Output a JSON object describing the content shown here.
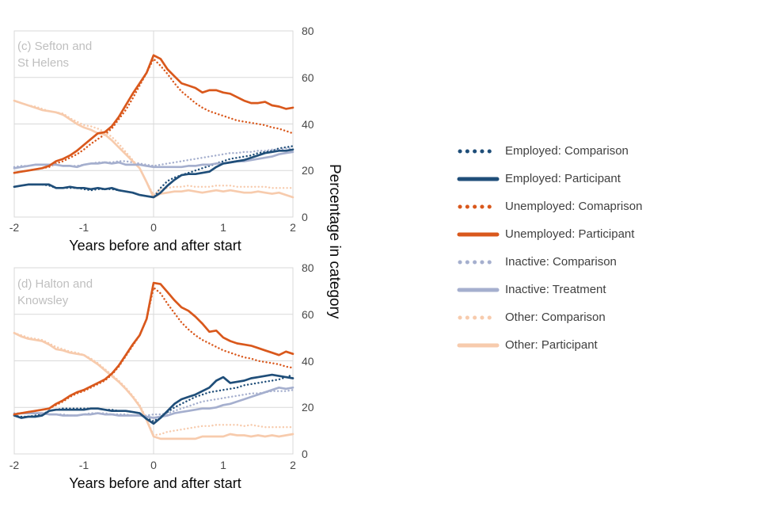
{
  "axis": {
    "x_title": "Years before and after start",
    "y_title": "Percentage in category",
    "x_ticks": [
      "-2",
      "-1",
      "0",
      "1",
      "2"
    ],
    "y_ticks": [
      "80",
      "60",
      "40",
      "20",
      "0"
    ]
  },
  "colors": {
    "navy": "#1F4E79",
    "orange": "#D9581C",
    "periwinkle": "#A5AFCE",
    "peach": "#F7CBAD",
    "grid": "#D9D9D9",
    "tick_text": "#484848",
    "panel_label_text": "#BFBFBF",
    "legend_text": "#404040"
  },
  "legend": {
    "items": [
      {
        "label": "Employed: Comparison",
        "color": "#1F4E79",
        "style": "dotted"
      },
      {
        "label": "Employed: Participant",
        "color": "#1F4E79",
        "style": "solid"
      },
      {
        "label": "Unemployed: Comaprison",
        "color": "#D9581C",
        "style": "dotted"
      },
      {
        "label": "Unemployed: Participant",
        "color": "#D9581C",
        "style": "solid"
      },
      {
        "label": "Inactive: Comparison",
        "color": "#A5AFCE",
        "style": "dotted"
      },
      {
        "label": "Inactive: Treatment",
        "color": "#A5AFCE",
        "style": "solid"
      },
      {
        "label": "Other: Comparison",
        "color": "#F7CBAD",
        "style": "dotted"
      },
      {
        "label": "Other: Participant",
        "color": "#F7CBAD",
        "style": "solid"
      }
    ]
  },
  "chart_data": [
    {
      "type": "line",
      "title": "(c) Sefton and St Helens",
      "panel_label_lines": [
        "(c) Sefton and",
        "St Helens"
      ],
      "xlabel": "Years before and after start",
      "ylabel": "Percentage in category",
      "xlim": [
        -2,
        2
      ],
      "ylim": [
        0,
        80
      ],
      "y_gridlines": [
        0,
        20,
        40,
        60,
        80
      ],
      "x_gridlines": [
        0
      ],
      "legend_position": "right",
      "x_start": -2,
      "x_step": 0.1,
      "series": [
        {
          "id": "employed-comparison",
          "name": "Employed: Comparison",
          "color": "#1F4E79",
          "line_style": "dotted",
          "values": [
            13,
            13.5,
            14,
            14,
            14,
            13.5,
            12.5,
            12.5,
            12.5,
            12.5,
            12,
            11.5,
            12,
            12,
            12,
            11.5,
            11,
            10.5,
            9.5,
            9,
            8.5,
            12.5,
            15.5,
            17,
            18,
            19,
            20,
            21,
            22,
            23,
            24,
            25,
            25.5,
            26,
            26.5,
            27.5,
            28,
            28.5,
            29.5,
            30,
            30.5
          ]
        },
        {
          "id": "employed-participant",
          "name": "Employed: Participant",
          "color": "#1F4E79",
          "line_style": "solid",
          "values": [
            13,
            13.5,
            14,
            14,
            14,
            14,
            12.5,
            12.5,
            13,
            12.5,
            12.5,
            12,
            12.5,
            12,
            12.5,
            11.5,
            11,
            10.5,
            9.5,
            9,
            8.5,
            10.5,
            13.5,
            16,
            18,
            18.5,
            18.5,
            19,
            19.5,
            21.5,
            23,
            23.5,
            24,
            24.5,
            25.5,
            26.5,
            27.5,
            28,
            28.5,
            28.5,
            29
          ]
        },
        {
          "id": "unemployed-comparison",
          "name": "Unemployed: Comaprison",
          "color": "#D9581C",
          "line_style": "dotted",
          "values": [
            19,
            19.5,
            20,
            20.5,
            21,
            21.5,
            23,
            24,
            25.5,
            27,
            29,
            31.5,
            33.5,
            35.5,
            38,
            42,
            46,
            51,
            56.5,
            62,
            68,
            65,
            61.5,
            57.5,
            54,
            51.5,
            49,
            47,
            45.5,
            44.5,
            43.5,
            42.5,
            41.5,
            41,
            40.5,
            40,
            39.5,
            38.5,
            38,
            37,
            36
          ]
        },
        {
          "id": "unemployed-participant",
          "name": "Unemployed: Participant",
          "color": "#D9581C",
          "line_style": "solid",
          "values": [
            19,
            19.5,
            20,
            20.5,
            21,
            22,
            24,
            25,
            26.5,
            28.5,
            31,
            33.5,
            36,
            36.5,
            39,
            43,
            48,
            53,
            57.5,
            62,
            69.5,
            68,
            63.5,
            60.5,
            57.5,
            56.5,
            55.5,
            53.5,
            54.5,
            54.5,
            53.5,
            53,
            51.5,
            50,
            49,
            49,
            49.5,
            48,
            47.5,
            46.5,
            47
          ]
        },
        {
          "id": "inactive-comparison",
          "name": "Inactive: Comparison",
          "color": "#A5AFCE",
          "line_style": "dotted",
          "values": [
            21.5,
            22,
            22,
            22.5,
            22.5,
            22.5,
            22.5,
            22,
            22,
            22,
            22.5,
            23,
            23.5,
            23.5,
            23.5,
            24,
            24,
            23.5,
            23,
            22.5,
            22,
            22.5,
            23,
            23.5,
            24,
            24.5,
            25,
            25.5,
            26,
            26.5,
            27,
            27.5,
            27.5,
            28,
            28,
            28.5,
            28.5,
            29,
            29,
            29.5,
            29.5
          ]
        },
        {
          "id": "inactive-treatment",
          "name": "Inactive: Treatment",
          "color": "#A5AFCE",
          "line_style": "solid",
          "values": [
            21,
            21.5,
            22,
            22.5,
            22.5,
            22.5,
            22.5,
            22,
            22,
            21.5,
            22.5,
            23,
            23,
            23.5,
            23,
            23.5,
            22.5,
            22.5,
            22.5,
            22,
            21.5,
            21.5,
            21.5,
            21.5,
            21.5,
            22,
            22,
            22.5,
            22.5,
            23,
            23,
            23.5,
            24,
            24,
            24.5,
            25,
            25.5,
            26,
            27,
            27.5,
            28
          ]
        },
        {
          "id": "other-comparison",
          "name": "Other: Comparison",
          "color": "#F7CBAD",
          "line_style": "dotted",
          "values": [
            50,
            49,
            48,
            47.5,
            46.5,
            45.5,
            45,
            44.5,
            42.5,
            41,
            39.5,
            39,
            38,
            36.5,
            34.5,
            31.5,
            28,
            24.5,
            21,
            15,
            9.5,
            12,
            12.5,
            13,
            13,
            13.5,
            13,
            13,
            13,
            13.5,
            13.5,
            13.5,
            13,
            13,
            13,
            13,
            13,
            12.5,
            12.5,
            12.5,
            12.5
          ]
        },
        {
          "id": "other-participant",
          "name": "Other: Participant",
          "color": "#F7CBAD",
          "line_style": "solid",
          "values": [
            50,
            49,
            48,
            47,
            46,
            45.5,
            45,
            44,
            42,
            40,
            38.5,
            37.5,
            36,
            35.5,
            33,
            30,
            27,
            24,
            21,
            15,
            8.5,
            10,
            10.5,
            11,
            11,
            11.5,
            11,
            10.5,
            11,
            11.5,
            11,
            11.5,
            11,
            10.5,
            10.5,
            11,
            10.5,
            10,
            10.5,
            9.5,
            8.5
          ]
        }
      ]
    },
    {
      "type": "line",
      "title": "(d) Halton and Knowsley",
      "panel_label_lines": [
        "(d) Halton and",
        "Knowsley"
      ],
      "xlabel": "Years before and after start",
      "ylabel": "Percentage in category",
      "xlim": [
        -2,
        2
      ],
      "ylim": [
        0,
        80
      ],
      "y_gridlines": [
        0,
        20,
        40,
        60,
        80
      ],
      "x_gridlines": [
        0
      ],
      "legend_position": "right",
      "x_start": -2,
      "x_step": 0.1,
      "series": [
        {
          "id": "employed-comparison",
          "name": "Employed: Comparison",
          "color": "#1F4E79",
          "line_style": "dotted",
          "values": [
            16.5,
            16,
            16,
            16.5,
            17,
            18.5,
            19,
            19.5,
            19.5,
            19.5,
            19.5,
            19.5,
            19.5,
            19,
            19,
            18.5,
            18.5,
            18,
            17.5,
            15.5,
            14,
            16,
            18,
            20,
            21.5,
            23,
            24.5,
            25.5,
            26.5,
            27,
            27.5,
            28,
            28.5,
            29.5,
            30,
            30.5,
            31,
            31.5,
            32,
            33,
            34
          ]
        },
        {
          "id": "employed-participant",
          "name": "Employed: Participant",
          "color": "#1F4E79",
          "line_style": "solid",
          "values": [
            16.5,
            15.5,
            16,
            16,
            16.5,
            18.5,
            19,
            19,
            19,
            19,
            19,
            19.5,
            19.5,
            19,
            18.5,
            18.5,
            18.5,
            18,
            17.5,
            15,
            13,
            15.5,
            18.5,
            21.5,
            23.5,
            24.5,
            25.5,
            27,
            28.5,
            31.5,
            33,
            30.5,
            31,
            31.5,
            32.5,
            33,
            33.5,
            34,
            33.5,
            33,
            32.5
          ]
        },
        {
          "id": "unemployed-comparison",
          "name": "Unemployed: Comaprison",
          "color": "#D9581C",
          "line_style": "dotted",
          "values": [
            17,
            17.5,
            18,
            18.5,
            19,
            19.5,
            21,
            22.5,
            24.5,
            26,
            27,
            28.5,
            30,
            31.5,
            34,
            37.5,
            42,
            46.5,
            51,
            58,
            71.5,
            69,
            64.5,
            60.5,
            56.5,
            53.5,
            51,
            49,
            47.5,
            46,
            44.5,
            43.5,
            42.5,
            41.5,
            41,
            40,
            39.5,
            39,
            38.5,
            37.5,
            37
          ]
        },
        {
          "id": "unemployed-participant",
          "name": "Unemployed: Participant",
          "color": "#D9581C",
          "line_style": "solid",
          "values": [
            17,
            17.5,
            18,
            18.5,
            19,
            19.5,
            21.5,
            23,
            25,
            26.5,
            27.5,
            29,
            30.5,
            32,
            34.5,
            38,
            42.5,
            47,
            51,
            58,
            73.5,
            73,
            69.5,
            66,
            63,
            61.5,
            59,
            56,
            52.5,
            53,
            50,
            48.5,
            47.5,
            47,
            46.5,
            45.5,
            44.5,
            43.5,
            42.5,
            44,
            43
          ]
        },
        {
          "id": "inactive-comparison",
          "name": "Inactive: Comparison",
          "color": "#A5AFCE",
          "line_style": "dotted",
          "values": [
            17.5,
            17.5,
            17.5,
            17.5,
            17.5,
            17,
            17,
            17,
            16.5,
            16.5,
            17,
            17.5,
            17.5,
            17.5,
            17,
            17,
            17,
            16.5,
            16.5,
            16.5,
            17,
            17,
            17.5,
            18.5,
            19.5,
            20.5,
            21.5,
            22.5,
            23,
            23.5,
            24,
            24.5,
            25,
            25.5,
            26,
            26,
            26.5,
            27,
            27,
            27,
            27.5
          ]
        },
        {
          "id": "inactive-treatment",
          "name": "Inactive: Treatment",
          "color": "#A5AFCE",
          "line_style": "solid",
          "values": [
            17,
            17.5,
            17.5,
            17.5,
            17.5,
            17,
            17,
            16.5,
            16.5,
            16.5,
            17,
            17,
            17.5,
            17,
            17,
            16.5,
            16.5,
            16.5,
            16.5,
            16,
            15.5,
            16,
            16.5,
            17.5,
            18,
            18.5,
            19,
            19.5,
            19.5,
            20,
            21,
            21.5,
            22.5,
            23.5,
            24.5,
            25.5,
            26.5,
            27.5,
            28.5,
            28,
            28.5
          ]
        },
        {
          "id": "other-comparison",
          "name": "Other: Comparison",
          "color": "#F7CBAD",
          "line_style": "dotted",
          "values": [
            52,
            51,
            50,
            49.5,
            49,
            47.5,
            46,
            45,
            44,
            43.5,
            42.5,
            41,
            39,
            36.5,
            34,
            31.5,
            28.5,
            25,
            21,
            15,
            8,
            8.5,
            9.5,
            10,
            10.5,
            11,
            11.5,
            12,
            12,
            12.5,
            12.5,
            12.5,
            12.5,
            12,
            12.5,
            12,
            11.5,
            11.5,
            11.5,
            11.5,
            11.5
          ]
        },
        {
          "id": "other-participant",
          "name": "Other: Participant",
          "color": "#F7CBAD",
          "line_style": "solid",
          "values": [
            52,
            50.5,
            49.5,
            49,
            48.5,
            47,
            45,
            44.5,
            43.5,
            43,
            42.5,
            40.5,
            38.5,
            36,
            33.5,
            31,
            28,
            24.5,
            20.5,
            14.5,
            7.5,
            6.5,
            6.5,
            6.5,
            6.5,
            6.5,
            6.5,
            7.5,
            7.5,
            7.5,
            7.5,
            8.5,
            8,
            8,
            7.5,
            8,
            7.5,
            8,
            7.5,
            8,
            8.5
          ]
        }
      ]
    }
  ]
}
